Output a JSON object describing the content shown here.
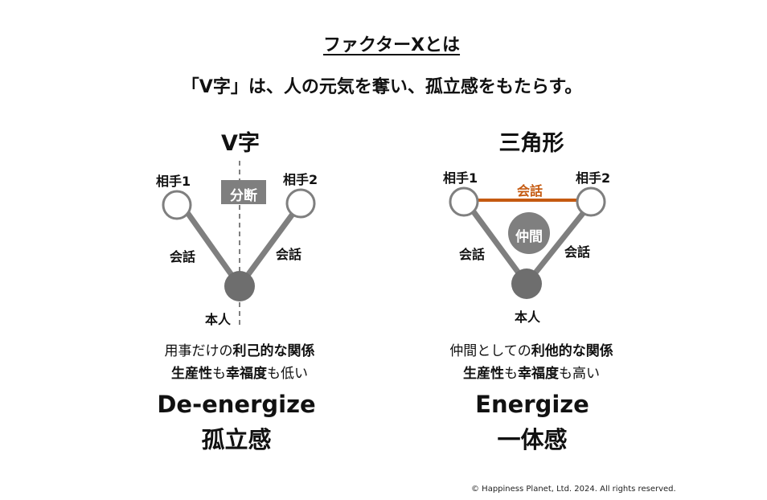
{
  "header": {
    "title": "ファクターXとは",
    "subtitle": "「V字」は、人の元気を奪い、孤立感をもたらす。"
  },
  "left": {
    "title": "V字",
    "partner1": "相手1",
    "partner2": "相手2",
    "divider_badge": "分断",
    "conversation_left": "会話",
    "conversation_right": "会話",
    "self": "本人",
    "desc_line1_normal": "用事だけの",
    "desc_line1_bold": "利己的な関係",
    "desc_line2_bold1": "生産性",
    "desc_line2_normal1": "も",
    "desc_line2_bold2": "幸福度",
    "desc_line2_normal2": "も低い",
    "result_en": "De-energize",
    "result_jp": "孤立感"
  },
  "right": {
    "title": "三角形",
    "partner1": "相手1",
    "partner2": "相手2",
    "conversation_top": "会話",
    "center_badge": "仲間",
    "conversation_left": "会話",
    "conversation_right": "会話",
    "self": "本人",
    "desc_line1_normal": "仲間としての",
    "desc_line1_bold": "利他的な関係",
    "desc_line2_bold1": "生産性",
    "desc_line2_normal1": "も",
    "desc_line2_bold2": "幸福度",
    "desc_line2_normal2": "も高い",
    "result_en": "Energize",
    "result_jp": "一体感"
  },
  "footer": {
    "copyright": "© Happiness Planet, Ltd. 2024. All rights reserved."
  },
  "colors": {
    "gray": "#7f7f7f",
    "dark_node": "#6e6e6e",
    "orange": "#c55a11"
  }
}
